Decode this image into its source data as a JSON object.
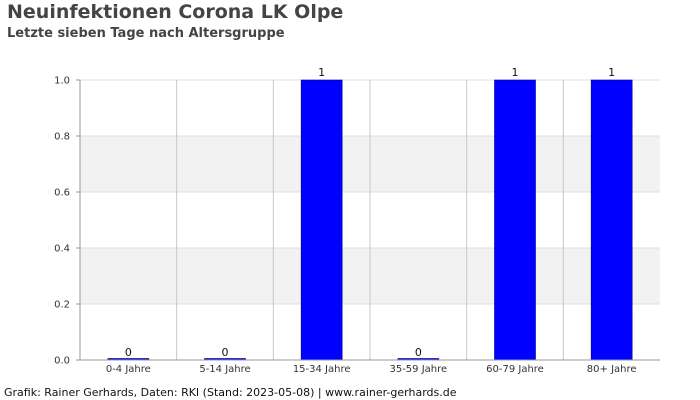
{
  "title": "Neuinfektionen Corona LK Olpe",
  "subtitle": "Letzte sieben Tage nach Altersgruppe",
  "footer": "Grafik: Rainer Gerhards, Daten: RKI (Stand: 2023-05-08) | www.rainer-gerhards.de",
  "chart_data": {
    "type": "bar",
    "categories": [
      "0-4 Jahre",
      "5-14 Jahre",
      "15-34 Jahre",
      "35-59 Jahre",
      "60-79 Jahre",
      "80+ Jahre"
    ],
    "values": [
      0,
      0,
      1,
      0,
      1,
      1
    ],
    "data_labels": [
      "0",
      "0",
      "1",
      "0",
      "1",
      "1"
    ],
    "ylim": [
      0,
      1.0
    ],
    "yticks": [
      "0.0",
      "0.2",
      "0.4",
      "0.6",
      "0.8",
      "1.0"
    ],
    "xlabel": "",
    "ylabel": "",
    "grid": true,
    "bar_color": "#0000ff",
    "band_color": "#f2f2f2"
  }
}
